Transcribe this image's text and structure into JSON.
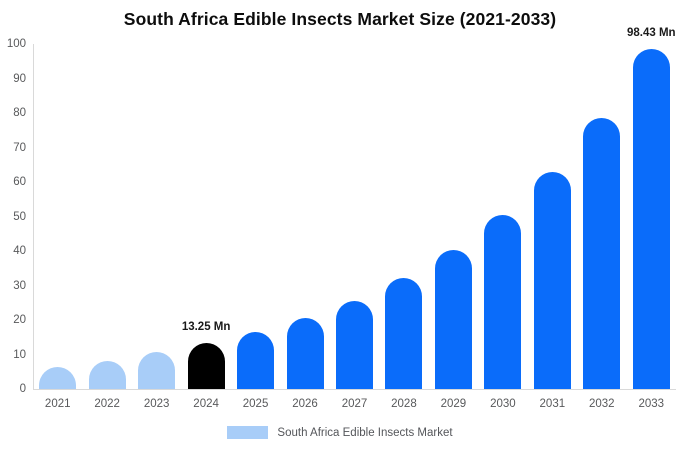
{
  "title": "South Africa Edible Insects Market Size (2021-2033)",
  "colors": {
    "bar_primary": "#0a6cfa",
    "bar_light": "#a8cdf8",
    "bar_highlight": "#000000",
    "axis_text": "#58595b",
    "axis_line": "#d9d9d9",
    "annotation_text": "#1a1a1a"
  },
  "legend": {
    "label": "South Africa Edible Insects Market",
    "swatch_color": "#a8cdf8"
  },
  "chart_data": {
    "type": "bar",
    "title": "South Africa Edible Insects Market Size (2021-2033)",
    "xlabel": "",
    "ylabel": "",
    "unit": "Mn",
    "categories": [
      "2021",
      "2022",
      "2023",
      "2024",
      "2025",
      "2026",
      "2027",
      "2028",
      "2029",
      "2030",
      "2031",
      "2032",
      "2033"
    ],
    "values": [
      6.4,
      8.1,
      10.6,
      13.25,
      16.56,
      20.7,
      25.4,
      32.2,
      40.3,
      50.4,
      62.9,
      78.6,
      98.43
    ],
    "bar_roles": [
      "light",
      "light",
      "light",
      "highlight",
      "primary",
      "primary",
      "primary",
      "primary",
      "primary",
      "primary",
      "primary",
      "primary",
      "primary"
    ],
    "ylim": [
      0,
      100
    ],
    "yticks": [
      0,
      10,
      20,
      30,
      40,
      50,
      60,
      70,
      80,
      90,
      100
    ],
    "grid": false,
    "legend_position": "bottom",
    "annotations": [
      {
        "year": "2024",
        "text": "13.25 Mn"
      },
      {
        "year": "2033",
        "text": "98.43 Mn"
      }
    ]
  }
}
